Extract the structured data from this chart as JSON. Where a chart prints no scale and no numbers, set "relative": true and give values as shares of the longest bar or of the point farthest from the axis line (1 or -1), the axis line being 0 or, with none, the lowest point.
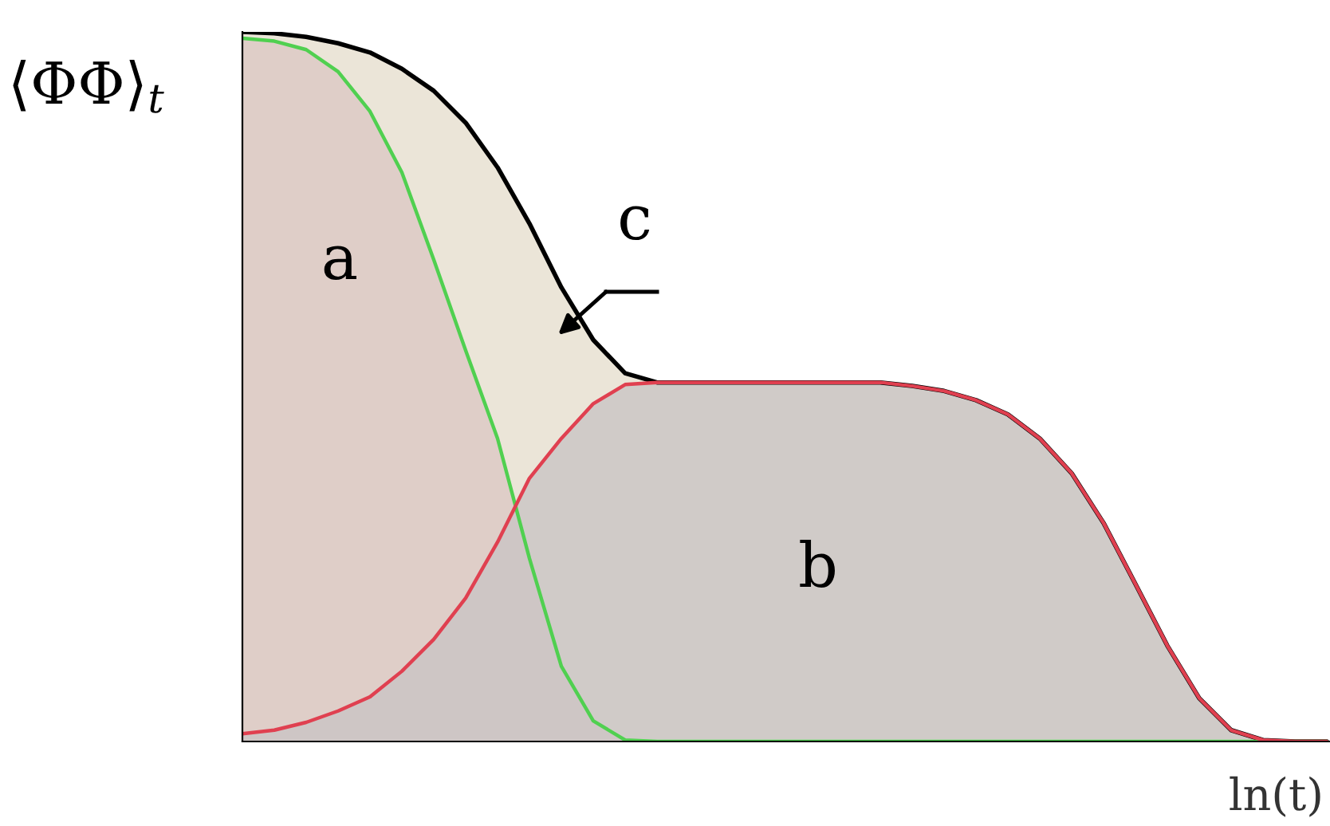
{
  "chart_data": {
    "type": "area",
    "relative": true,
    "xlabel": "ln(t)",
    "ylabel": "⟨ΦΦ⟩$_{t}$",
    "categories": [
      null,
      null,
      null,
      null,
      null,
      null,
      null,
      null,
      null,
      null,
      null,
      null,
      null,
      null,
      null,
      null,
      null,
      null,
      null,
      null,
      null,
      null,
      null,
      null,
      null,
      null,
      null,
      null,
      null,
      null,
      null,
      null,
      null,
      null,
      null
    ],
    "annotations": [
      "a",
      "b",
      "c"
    ],
    "series": [
      {
        "color": "#000000",
        "values": [
          1.0,
          0.998,
          0.993,
          0.984,
          0.971,
          0.948,
          0.917,
          0.872,
          0.809,
          0.73,
          0.64,
          0.566,
          0.519,
          0.506,
          0.506,
          0.506,
          0.506,
          0.506,
          0.506,
          0.506,
          0.506,
          0.501,
          0.494,
          0.481,
          0.461,
          0.427,
          0.378,
          0.308,
          0.222,
          0.135,
          0.061,
          0.016,
          0.002,
          0,
          0
        ]
      },
      {
        "color": "#50d050",
        "values": [
          0.991,
          0.987,
          0.975,
          0.944,
          0.888,
          0.802,
          0.679,
          0.551,
          0.427,
          0.258,
          0.106,
          0.029,
          0.002,
          0,
          0,
          0,
          0,
          0,
          0,
          0,
          0,
          0,
          0,
          0,
          0,
          0,
          0,
          0,
          0,
          0,
          0,
          0,
          0,
          0,
          0
        ]
      },
      {
        "color": "#e04050",
        "values": [
          0.011,
          0.016,
          0.027,
          0.043,
          0.063,
          0.099,
          0.144,
          0.202,
          0.281,
          0.371,
          0.427,
          0.476,
          0.503,
          0.506,
          0.506,
          0.506,
          0.506,
          0.506,
          0.506,
          0.506,
          0.506,
          0.501,
          0.494,
          0.481,
          0.461,
          0.427,
          0.378,
          0.308,
          0.222,
          0.135,
          0.061,
          0.016,
          0.002,
          0,
          0
        ]
      }
    ]
  }
}
